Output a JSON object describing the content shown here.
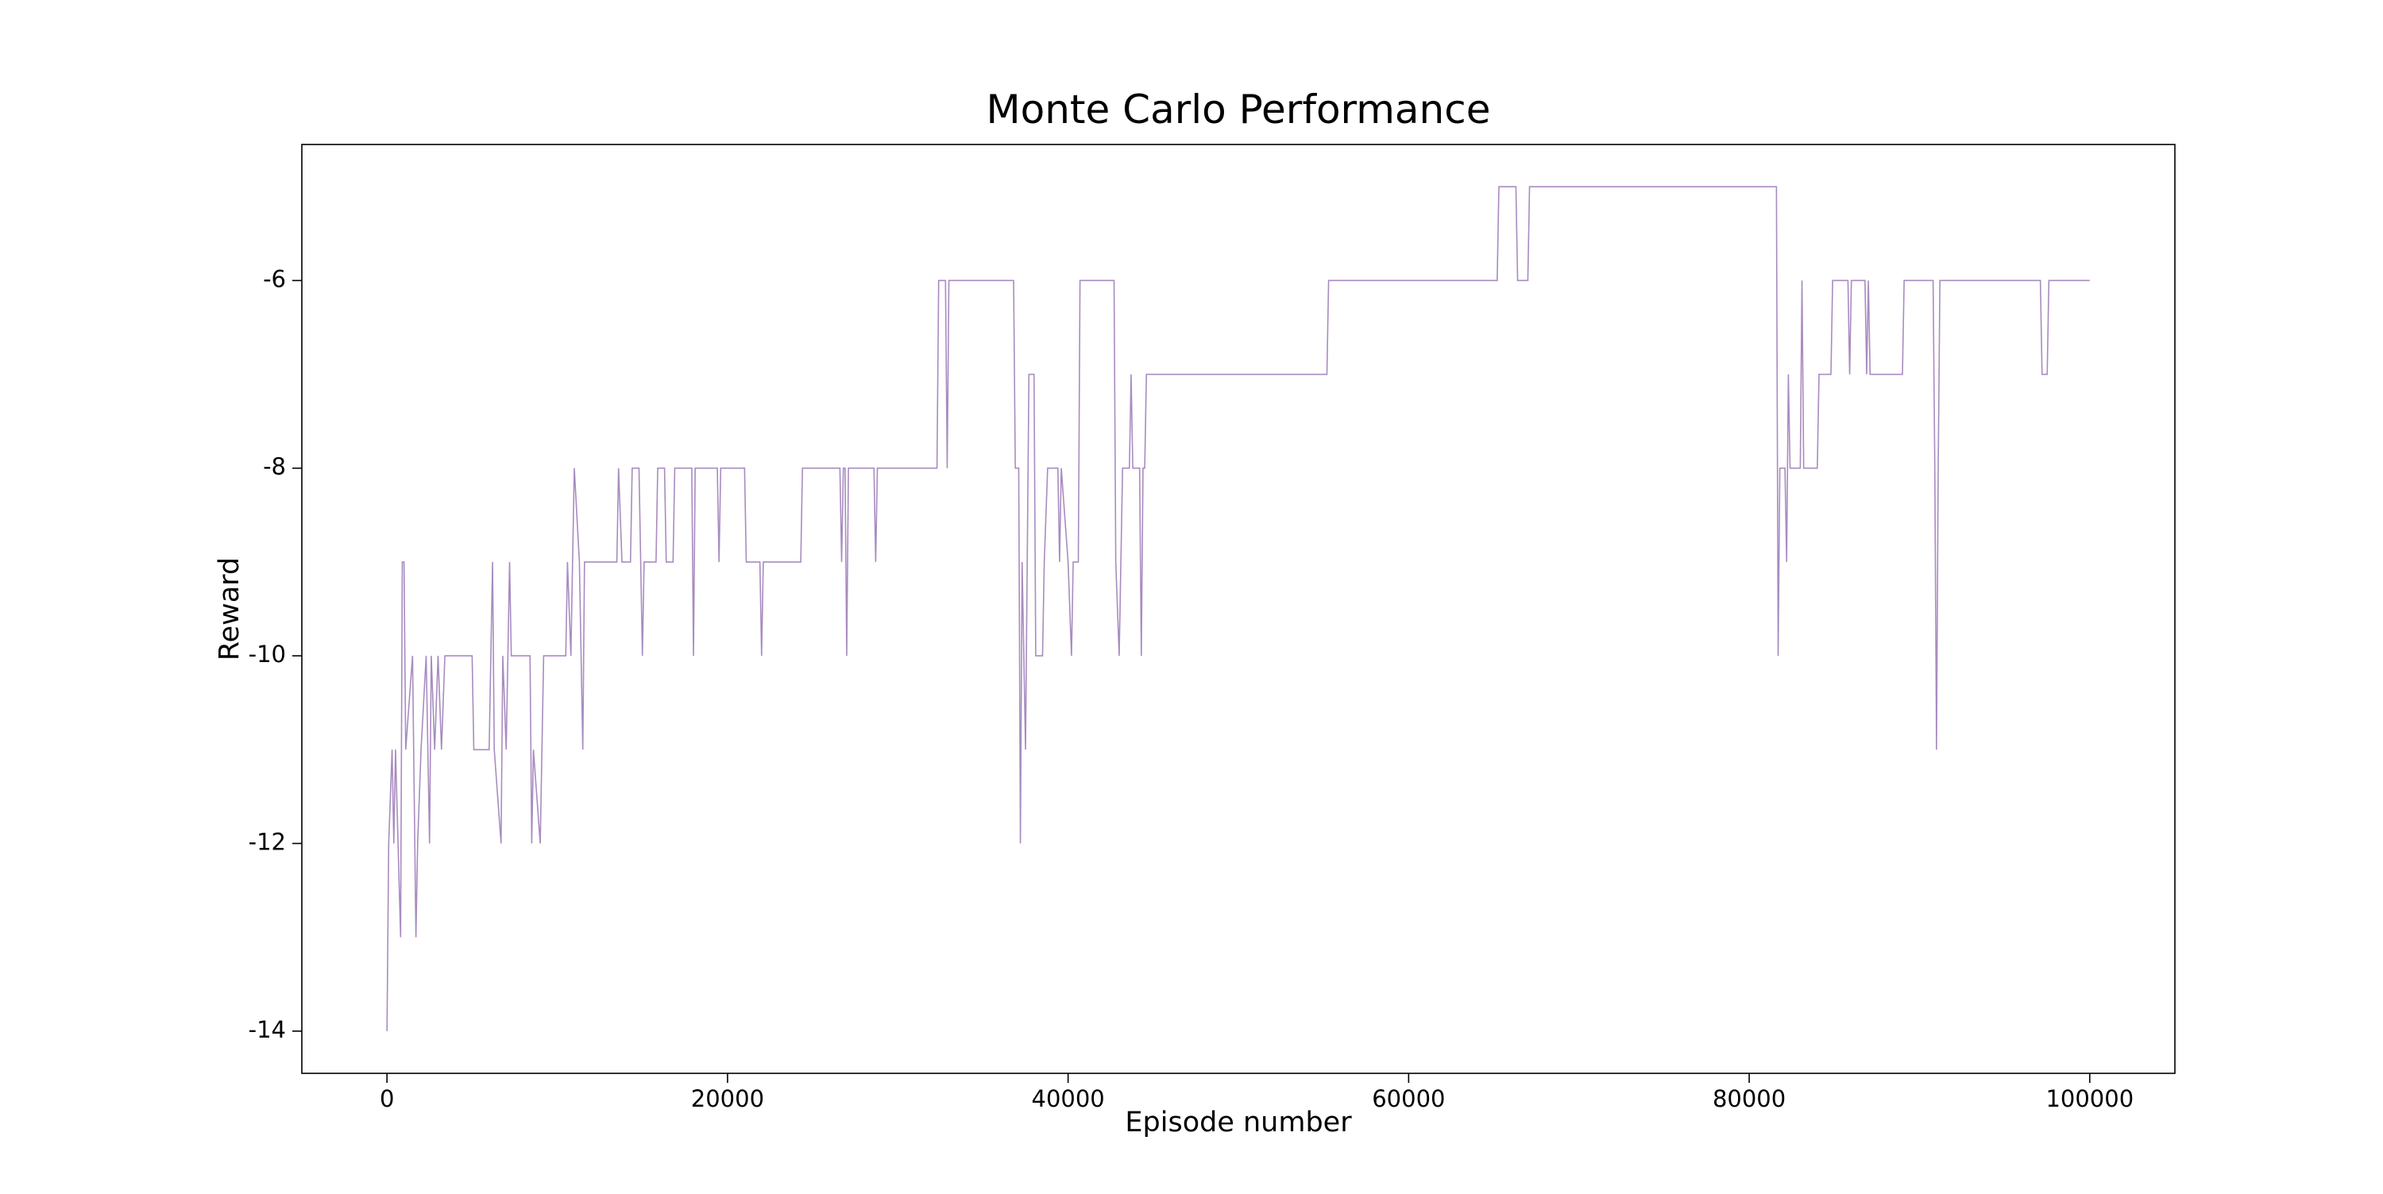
{
  "chart_data": {
    "type": "line",
    "title": "Monte Carlo Performance",
    "x_label": "Episode number",
    "y_label": "Reward",
    "xlim": [
      -5000,
      105000
    ],
    "ylim": [
      -14.45,
      -4.55
    ],
    "xticks": [
      0,
      20000,
      40000,
      60000,
      80000,
      100000
    ],
    "yticks": [
      -14,
      -12,
      -10,
      -8,
      -6
    ],
    "grid": false,
    "series": [
      {
        "color": "#a88cc0",
        "x": [
          0,
          100,
          300,
          400,
          500,
          800,
          900,
          1000,
          1100,
          1500,
          1700,
          1800,
          2000,
          2300,
          2500,
          2600,
          2800,
          3000,
          3200,
          3400,
          5000,
          5100,
          6000,
          6100,
          6200,
          6300,
          6700,
          6800,
          7000,
          7200,
          7300,
          8400,
          8500,
          8600,
          9000,
          9200,
          10500,
          10600,
          10800,
          11000,
          11300,
          11500,
          11600,
          13500,
          13600,
          13800,
          14300,
          14400,
          14800,
          14900,
          15000,
          15100,
          15800,
          15900,
          16300,
          16400,
          16800,
          16900,
          17900,
          18000,
          18100,
          19400,
          19500,
          19600,
          21000,
          21100,
          21900,
          22000,
          22100,
          24300,
          24400,
          26600,
          26700,
          26800,
          26900,
          27000,
          27100,
          28600,
          28700,
          28800,
          32300,
          32400,
          32800,
          32900,
          33000,
          36800,
          36900,
          37100,
          37200,
          37300,
          37500,
          37700,
          38000,
          38100,
          38500,
          38600,
          38800,
          39400,
          39500,
          39600,
          40000,
          40200,
          40300,
          40600,
          40700,
          42700,
          42800,
          43000,
          43100,
          43200,
          43600,
          43700,
          43800,
          44200,
          44300,
          44400,
          44500,
          44600,
          55200,
          55300,
          65200,
          65300,
          66300,
          66400,
          67000,
          67100,
          81600,
          81700,
          81800,
          82100,
          82200,
          82300,
          82400,
          83000,
          83100,
          83200,
          84000,
          84100,
          84800,
          84900,
          85800,
          85900,
          86000,
          86800,
          86900,
          87000,
          87100,
          89000,
          89100,
          90800,
          90900,
          91000,
          91100,
          91200,
          97100,
          97200,
          97500,
          97600,
          100000
        ],
        "values": [
          -14,
          -12,
          -11,
          -12,
          -11,
          -13,
          -9,
          -9,
          -11,
          -10,
          -13,
          -12,
          -11,
          -10,
          -12,
          -10,
          -11,
          -10,
          -11,
          -10,
          -10,
          -11,
          -11,
          -10,
          -9,
          -11,
          -12,
          -10,
          -11,
          -9,
          -10,
          -10,
          -12,
          -11,
          -12,
          -10,
          -10,
          -9,
          -10,
          -8,
          -9,
          -11,
          -9,
          -9,
          -8,
          -9,
          -9,
          -8,
          -8,
          -9,
          -10,
          -9,
          -9,
          -8,
          -8,
          -9,
          -9,
          -8,
          -8,
          -10,
          -8,
          -8,
          -9,
          -8,
          -8,
          -9,
          -9,
          -10,
          -9,
          -9,
          -8,
          -8,
          -9,
          -8,
          -8,
          -10,
          -8,
          -8,
          -9,
          -8,
          -8,
          -6,
          -6,
          -8,
          -6,
          -6,
          -8,
          -8,
          -12,
          -9,
          -11,
          -7,
          -7,
          -10,
          -10,
          -9,
          -8,
          -8,
          -9,
          -8,
          -9,
          -10,
          -9,
          -9,
          -6,
          -6,
          -9,
          -10,
          -9,
          -8,
          -8,
          -7,
          -8,
          -8,
          -10,
          -8,
          -8,
          -7,
          -7,
          -6,
          -6,
          -5,
          -5,
          -6,
          -6,
          -5,
          -5,
          -10,
          -8,
          -8,
          -9,
          -7,
          -8,
          -8,
          -6,
          -8,
          -8,
          -7,
          -7,
          -6,
          -6,
          -7,
          -6,
          -6,
          -7,
          -6,
          -7,
          -7,
          -6,
          -6,
          -8,
          -11,
          -8,
          -6,
          -6,
          -7,
          -7,
          -6,
          -6
        ]
      }
    ]
  }
}
